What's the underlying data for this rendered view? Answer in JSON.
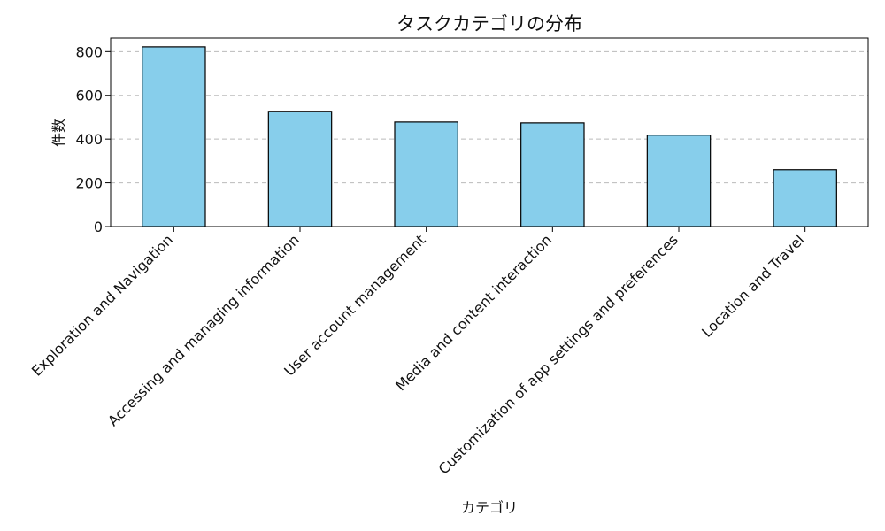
{
  "chart_data": {
    "type": "bar",
    "title": "タスクカテゴリの分布",
    "xlabel": "カテゴリ",
    "ylabel": "件数",
    "categories": [
      "Exploration and Navigation",
      "Accessing and managing information",
      "User account management",
      "Media and content interaction",
      "Customization of app settings and preferences",
      "Location and Travel"
    ],
    "values": [
      822,
      527,
      478,
      474,
      418,
      260
    ],
    "ylim": [
      0,
      862
    ],
    "yticks": [
      0,
      200,
      400,
      600,
      800
    ],
    "grid": "y-dashed",
    "colors": {
      "bar_fill": "#87CEEB",
      "bar_edge": "#000000",
      "grid": "#bbbbbb"
    }
  }
}
